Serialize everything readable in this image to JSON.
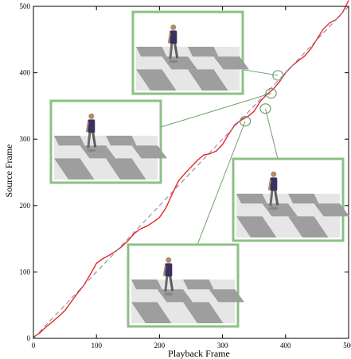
{
  "chart_data": {
    "type": "line",
    "title": "",
    "xlabel": "Playback Frame",
    "ylabel": "Source Frame",
    "xlim": [
      0,
      500
    ],
    "ylim": [
      0,
      500
    ],
    "xticks": [
      0,
      100,
      200,
      300,
      400,
      500
    ],
    "yticks": [
      0,
      100,
      200,
      300,
      400,
      500
    ],
    "xtick_labels": [
      "0",
      "100",
      "200",
      "300",
      "400",
      "500"
    ],
    "ytick_labels": [
      "0",
      "100",
      "200",
      "300",
      "400",
      "500"
    ],
    "grid": false,
    "series": [
      {
        "style": "solid",
        "color": "#e8242b",
        "x": [
          0,
          10,
          20,
          30,
          40,
          50,
          60,
          70,
          80,
          90,
          100,
          110,
          120,
          130,
          140,
          150,
          160,
          170,
          180,
          190,
          200,
          210,
          220,
          230,
          240,
          250,
          260,
          270,
          280,
          290,
          300,
          310,
          320,
          330,
          340,
          350,
          360,
          370,
          380,
          390,
          400,
          410,
          420,
          430,
          440,
          450,
          460,
          470,
          480,
          490,
          500
        ],
        "y": [
          2,
          8,
          17,
          25,
          33,
          42,
          55,
          68,
          80,
          96,
          113,
          120,
          125,
          131,
          138,
          147,
          158,
          165,
          169,
          175,
          182,
          196,
          217,
          237,
          248,
          258,
          268,
          276,
          278,
          282,
          292,
          308,
          322,
          329,
          334,
          342,
          357,
          367,
          375,
          386,
          400,
          410,
          418,
          425,
          436,
          451,
          466,
          475,
          480,
          490,
          509
        ]
      },
      {
        "style": "dashed",
        "color": "#7f7f9a",
        "x": [
          0,
          500
        ],
        "y": [
          0,
          500
        ]
      }
    ],
    "highlighted_points": [
      {
        "x": 388,
        "y": 396
      },
      {
        "x": 377,
        "y": 369
      },
      {
        "x": 368,
        "y": 346
      },
      {
        "x": 336,
        "y": 327
      }
    ],
    "frame_insets": [
      {
        "target": 0
      },
      {
        "target": 1
      },
      {
        "target": 2
      },
      {
        "target": 3
      }
    ]
  },
  "colors": {
    "curve": "#e8242b",
    "diagonal": "#7f7f9a",
    "leader": "#6f9f6b",
    "frame": "#8cc084",
    "marker": "#6f9f6b"
  }
}
